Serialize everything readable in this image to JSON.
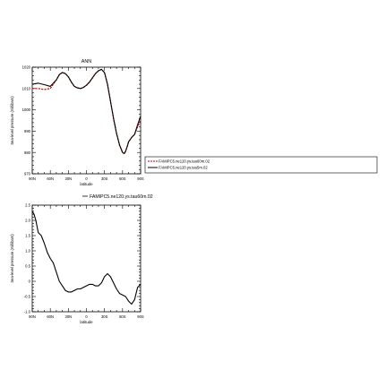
{
  "chart_data": [
    {
      "type": "line",
      "title": "ANN",
      "xlabel": "latitude",
      "ylabel": "Sea-level pressure (millibars)",
      "xlim": [
        -90,
        90
      ],
      "ylim": [
        970,
        1020
      ],
      "xticks": [
        90,
        60,
        30,
        0,
        -30,
        -60,
        -90
      ],
      "xtick_labels": [
        "90N",
        "60N",
        "30N",
        "0",
        "30S",
        "60S",
        "90S"
      ],
      "yticks": [
        970,
        980,
        990,
        1000,
        1010,
        1020
      ],
      "ytick_labels": [
        "970",
        "980",
        "990",
        "1000",
        "1010",
        "1020"
      ],
      "legend_placement": "right",
      "series": [
        {
          "name": "FAMIPC5.ne120.ys.tau60m.02",
          "color": "#cc0000",
          "style": "dashed",
          "x": [
            90,
            80,
            70,
            60,
            50,
            45,
            40,
            35,
            30,
            25,
            20,
            15,
            10,
            5,
            0,
            -5,
            -10,
            -15,
            -20,
            -25,
            -30,
            -35,
            -40,
            -45,
            -50,
            -55,
            -60,
            -63,
            -65,
            -68,
            -70,
            -75,
            -80,
            -85,
            -90
          ],
          "y": [
            1010.0,
            1010.0,
            1009.5,
            1010.0,
            1014.0,
            1016.5,
            1017.5,
            1017.0,
            1015.5,
            1013.0,
            1011.0,
            1010.3,
            1010.0,
            1010.5,
            1011.5,
            1013.0,
            1015.0,
            1017.0,
            1018.3,
            1019.0,
            1017.5,
            1012.0,
            1004.0,
            996.0,
            989.0,
            983.5,
            980.0,
            979.5,
            980.5,
            983.0,
            985.0,
            987.0,
            988.5,
            992.0,
            995.0
          ]
        },
        {
          "name": "FAMIPC5.ne120.ys.tau5m.02",
          "color": "#000000",
          "style": "solid",
          "x": [
            90,
            80,
            70,
            60,
            50,
            45,
            40,
            35,
            30,
            25,
            20,
            15,
            10,
            5,
            0,
            -5,
            -10,
            -15,
            -20,
            -25,
            -30,
            -35,
            -40,
            -45,
            -50,
            -55,
            -60,
            -63,
            -65,
            -68,
            -70,
            -75,
            -80,
            -85,
            -90
          ],
          "y": [
            1012.0,
            1012.5,
            1011.8,
            1011.0,
            1014.0,
            1016.5,
            1017.5,
            1017.0,
            1015.5,
            1013.0,
            1011.0,
            1010.3,
            1010.0,
            1010.5,
            1011.5,
            1013.0,
            1015.0,
            1017.0,
            1018.3,
            1019.0,
            1017.5,
            1012.0,
            1004.0,
            996.0,
            989.0,
            983.5,
            980.0,
            979.5,
            980.5,
            983.0,
            985.0,
            987.0,
            988.5,
            993.0,
            997.0
          ]
        }
      ]
    },
    {
      "type": "line",
      "title": "FAMIPC5.ne120.ys.tau60m.02",
      "xlabel": "latitude",
      "ylabel": "Sea-level pressure (millibars)",
      "xlim": [
        -90,
        90
      ],
      "ylim": [
        -1.0,
        2.5
      ],
      "xticks": [
        90,
        60,
        30,
        0,
        -30,
        -60,
        -90
      ],
      "xtick_labels": [
        "90N",
        "60N",
        "30N",
        "0",
        "30S",
        "60S",
        "90S"
      ],
      "yticks": [
        -1.0,
        -0.5,
        0,
        0.5,
        1.0,
        1.5,
        2.0,
        2.5
      ],
      "ytick_labels": [
        "-1.0",
        "-0.5",
        "0",
        "0.5",
        "1.0",
        "1.5",
        "2.0",
        "2.5"
      ],
      "series": [
        {
          "name": "FAMIPC5.ne120.ys.tau60m.02",
          "color": "#000000",
          "style": "solid",
          "x": [
            90,
            87,
            84,
            80,
            75,
            70,
            65,
            60,
            55,
            50,
            45,
            40,
            35,
            30,
            25,
            20,
            15,
            10,
            5,
            0,
            -5,
            -10,
            -15,
            -20,
            -25,
            -30,
            -35,
            -40,
            -45,
            -50,
            -55,
            -60,
            -65,
            -70,
            -75,
            -80,
            -85,
            -90
          ],
          "y": [
            2.3,
            2.2,
            2.0,
            1.6,
            1.5,
            1.25,
            0.95,
            0.75,
            0.6,
            0.3,
            0.0,
            -0.15,
            -0.3,
            -0.35,
            -0.35,
            -0.3,
            -0.25,
            -0.25,
            -0.2,
            -0.15,
            -0.1,
            -0.1,
            -0.15,
            -0.15,
            -0.05,
            0.15,
            0.25,
            0.15,
            -0.05,
            -0.25,
            -0.4,
            -0.45,
            -0.5,
            -0.65,
            -0.75,
            -0.6,
            -0.2,
            -0.1
          ]
        }
      ]
    }
  ]
}
